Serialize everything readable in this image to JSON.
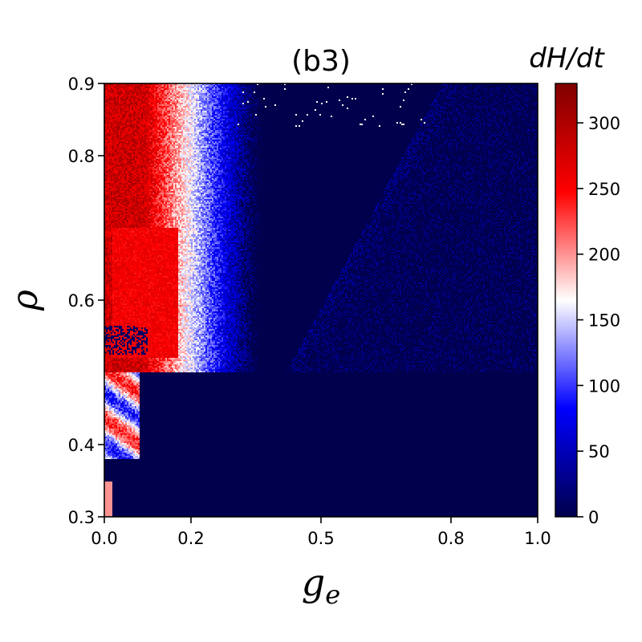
{
  "chart_data": {
    "type": "heatmap",
    "title": "(b3)",
    "xlabel": "g",
    "xlabel_subscript": "e",
    "ylabel": "ρ",
    "xlim": [
      0.0,
      1.0
    ],
    "ylim": [
      0.3,
      0.9
    ],
    "x_ticks": [
      {
        "value": 0.0,
        "label": "0.0"
      },
      {
        "value": 0.2,
        "label": "0.2"
      },
      {
        "value": 0.5,
        "label": "0.5"
      },
      {
        "value": 0.8,
        "label": "0.8"
      },
      {
        "value": 1.0,
        "label": "1.0"
      }
    ],
    "y_ticks": [
      {
        "value": 0.3,
        "label": "0.3"
      },
      {
        "value": 0.4,
        "label": "0.4"
      },
      {
        "value": 0.6,
        "label": "0.6"
      },
      {
        "value": 0.8,
        "label": "0.8"
      },
      {
        "value": 0.9,
        "label": "0.9"
      }
    ],
    "colorbar": {
      "label": "dH/dt",
      "min": 0,
      "max": 330,
      "colormap": "seismic",
      "ticks": [
        {
          "value": 0,
          "label": "0"
        },
        {
          "value": 50,
          "label": "50"
        },
        {
          "value": 100,
          "label": "100"
        },
        {
          "value": 150,
          "label": "150"
        },
        {
          "value": 200,
          "label": "200"
        },
        {
          "value": 250,
          "label": "250"
        },
        {
          "value": 300,
          "label": "300"
        }
      ]
    },
    "regions": {
      "low_rho_zero_zone_below": 0.5,
      "high_value_band_ge_max": 0.2,
      "peak_value": 300,
      "gradient_midpoint_ge": 0.19
    },
    "colors": {
      "low": "#00004c",
      "mid": "#ffffff",
      "high": "#800000"
    }
  }
}
